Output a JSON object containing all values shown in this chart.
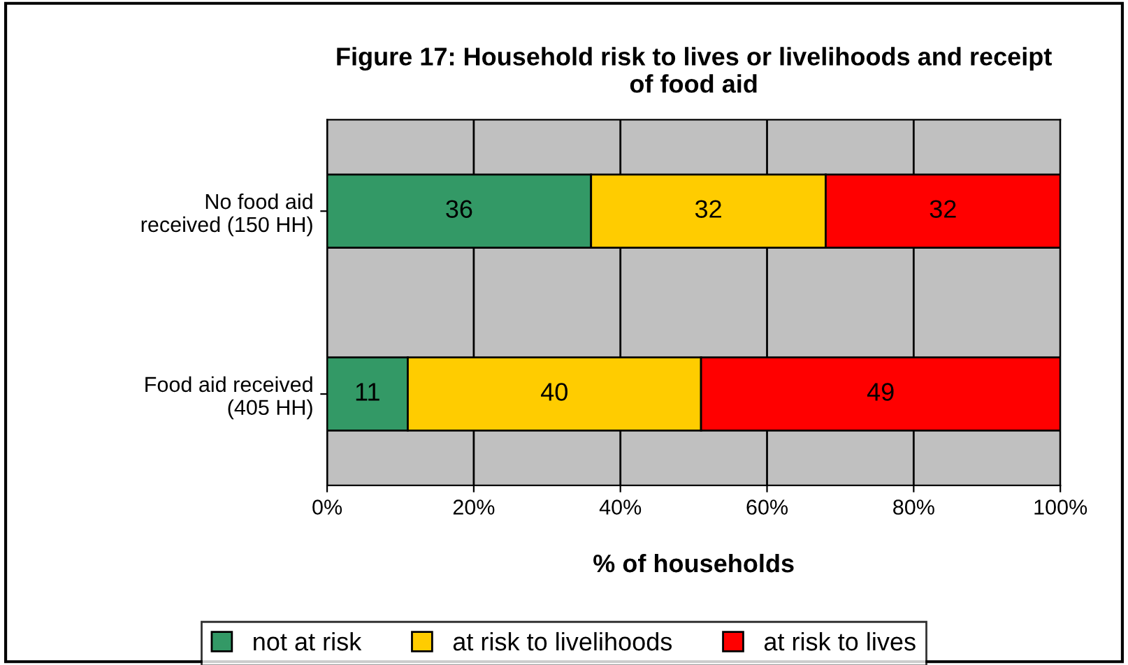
{
  "chart_data": {
    "type": "bar",
    "orientation": "horizontal",
    "stacked": true,
    "title": "Figure 17: Household risk to lives or livelihoods and receipt\nof food aid",
    "xlabel": "% of households",
    "categories": [
      "No food aid\nreceived (150 HH)",
      "Food aid received\n(405 HH)"
    ],
    "series": [
      {
        "name": "not at risk",
        "color": "#339966",
        "values": [
          36,
          11
        ]
      },
      {
        "name": "at risk to livelihoods",
        "color": "#ffcc00",
        "values": [
          32,
          40
        ]
      },
      {
        "name": "at risk to lives",
        "color": "#ff0000",
        "values": [
          32,
          49
        ]
      }
    ],
    "xlim": [
      0,
      100
    ],
    "xticks": [
      {
        "value": 0,
        "label": "0%"
      },
      {
        "value": 20,
        "label": "20%"
      },
      {
        "value": 40,
        "label": "40%"
      },
      {
        "value": 60,
        "label": "60%"
      },
      {
        "value": 80,
        "label": "80%"
      },
      {
        "value": 100,
        "label": "100%"
      }
    ],
    "grid": "x",
    "legend": "bottom",
    "data_labels": true
  }
}
